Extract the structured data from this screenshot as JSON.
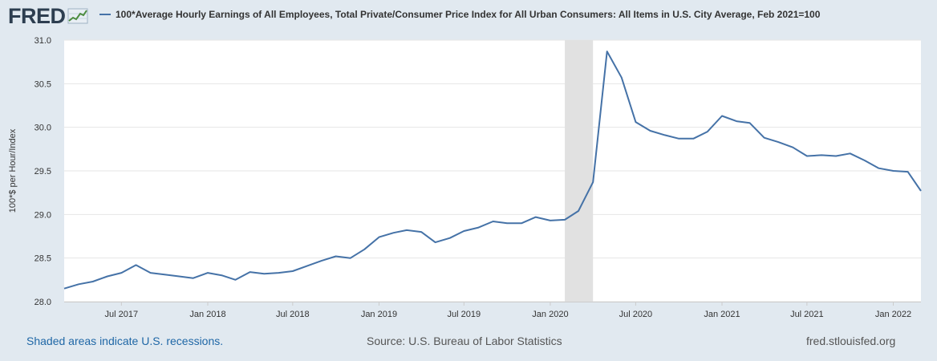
{
  "header": {
    "logo_text": "FRED",
    "series_title": "100*Average Hourly Earnings of All Employees, Total Private/Consumer Price Index for All Urban Consumers: All Items in U.S. City Average, Feb 2021=100"
  },
  "footer": {
    "recession_note": "Shaded areas indicate U.S. recessions.",
    "source": "Source: U.S. Bureau of Labor Statistics",
    "site": "fred.stlouisfed.org"
  },
  "colors": {
    "line": "#4572a7",
    "recession": "#e1e1e1",
    "background": "#e1e9f0",
    "grid": "#e6e6e6"
  },
  "chart_data": {
    "type": "line",
    "title": "100*Average Hourly Earnings of All Employees, Total Private/Consumer Price Index for All Urban Consumers: All Items in U.S. City Average, Feb 2021=100",
    "ylabel": "100*$ per Hour/Index",
    "xlabel": "",
    "ylim": [
      28.0,
      31.0
    ],
    "yticks": [
      28.0,
      28.5,
      29.0,
      29.5,
      30.0,
      30.5,
      31.0
    ],
    "ytick_labels": [
      "28.0",
      "28.5",
      "29.0",
      "29.5",
      "30.0",
      "30.5",
      "31.0"
    ],
    "xlim": [
      "2017-03-01",
      "2022-03-01"
    ],
    "xticks": [
      {
        "date": "2017-07-01",
        "label": "Jul 2017"
      },
      {
        "date": "2018-01-01",
        "label": "Jan 2018"
      },
      {
        "date": "2018-07-01",
        "label": "Jul 2018"
      },
      {
        "date": "2019-01-01",
        "label": "Jan 2019"
      },
      {
        "date": "2019-07-01",
        "label": "Jul 2019"
      },
      {
        "date": "2020-01-01",
        "label": "Jan 2020"
      },
      {
        "date": "2020-07-01",
        "label": "Jul 2020"
      },
      {
        "date": "2021-01-01",
        "label": "Jan 2021"
      },
      {
        "date": "2021-07-01",
        "label": "Jul 2021"
      },
      {
        "date": "2022-01-01",
        "label": "Jan 2022"
      }
    ],
    "recessions": [
      {
        "start": "2020-02-01",
        "end": "2020-04-01"
      }
    ],
    "grid": true,
    "legend": "top",
    "series": [
      {
        "name": "100*Average Hourly Earnings of All Employees, Total Private/Consumer Price Index for All Urban Consumers: All Items in U.S. City Average, Feb 2021=100",
        "x": [
          "2017-03-01",
          "2017-04-01",
          "2017-05-01",
          "2017-06-01",
          "2017-07-01",
          "2017-08-01",
          "2017-09-01",
          "2017-10-01",
          "2017-11-01",
          "2017-12-01",
          "2018-01-01",
          "2018-02-01",
          "2018-03-01",
          "2018-04-01",
          "2018-05-01",
          "2018-06-01",
          "2018-07-01",
          "2018-08-01",
          "2018-09-01",
          "2018-10-01",
          "2018-11-01",
          "2018-12-01",
          "2019-01-01",
          "2019-02-01",
          "2019-03-01",
          "2019-04-01",
          "2019-05-01",
          "2019-06-01",
          "2019-07-01",
          "2019-08-01",
          "2019-09-01",
          "2019-10-01",
          "2019-11-01",
          "2019-12-01",
          "2020-01-01",
          "2020-02-01",
          "2020-03-01",
          "2020-04-01",
          "2020-05-01",
          "2020-06-01",
          "2020-07-01",
          "2020-08-01",
          "2020-09-01",
          "2020-10-01",
          "2020-11-01",
          "2020-12-01",
          "2021-01-01",
          "2021-02-01",
          "2021-03-01",
          "2021-04-01",
          "2021-05-01",
          "2021-06-01",
          "2021-07-01",
          "2021-08-01",
          "2021-09-01",
          "2021-10-01",
          "2021-11-01",
          "2021-12-01",
          "2022-01-01",
          "2022-02-01",
          "2022-03-01"
        ],
        "values": [
          28.15,
          28.2,
          28.23,
          28.29,
          28.33,
          28.42,
          28.33,
          28.31,
          28.29,
          28.27,
          28.33,
          28.3,
          28.25,
          28.34,
          28.32,
          28.33,
          28.35,
          28.41,
          28.47,
          28.52,
          28.5,
          28.6,
          28.74,
          28.79,
          28.82,
          28.8,
          28.68,
          28.73,
          28.81,
          28.85,
          28.92,
          28.9,
          28.9,
          28.97,
          28.93,
          28.94,
          29.04,
          29.37,
          30.87,
          30.57,
          30.06,
          29.96,
          29.91,
          29.87,
          29.87,
          29.95,
          30.13,
          30.07,
          30.05,
          29.88,
          29.83,
          29.77,
          29.67,
          29.68,
          29.67,
          29.7,
          29.62,
          29.53,
          29.5,
          29.49,
          29.27
        ]
      }
    ]
  }
}
